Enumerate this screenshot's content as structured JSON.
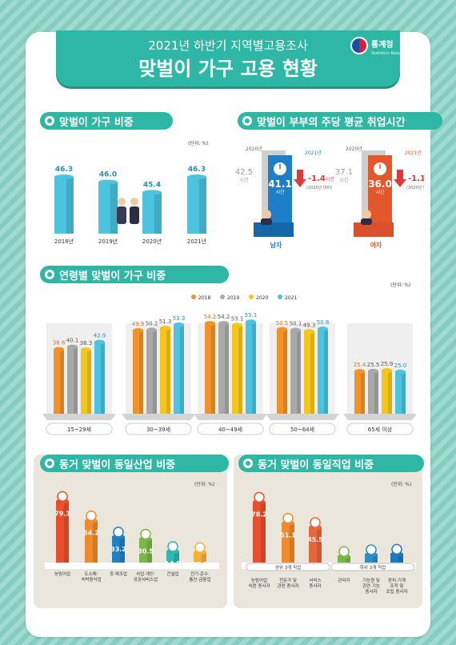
{
  "header": {
    "subtitle": "2021년 하반기 지역별고용조사",
    "title": "맞벌이 가구 고용 현황",
    "logo_name": "통계청",
    "logo_sub": "Statistics Korea"
  },
  "sections": {
    "s1": {
      "title": "맞벌이 가구 비중",
      "unit": "(단위: %)"
    },
    "s2": {
      "title": "맞벌이 부부의 주당 평균 취업시간"
    },
    "s3": {
      "title": "연령별 맞벌이 가구 비중",
      "unit": "(단위: %)"
    },
    "s4": {
      "title": "동거 맞벌이 동일산업 비중",
      "unit": "(단위: %)"
    },
    "s5": {
      "title": "동거 맞벌이 동일직업 비중",
      "unit": "(단위: %)"
    }
  },
  "hours": {
    "men": {
      "label": "남자",
      "y2020": "2020년",
      "y2021": "2021년",
      "v2020": "42.5",
      "v2021": "41.1",
      "unit": "시간",
      "change": "-1.4",
      "change_unit": "시간",
      "cmp": "(2020년 대비)"
    },
    "women": {
      "label": "여자",
      "y2020": "2020년",
      "y2021": "2021년",
      "v2020": "37.1",
      "v2021": "36.0",
      "unit": "시간",
      "change": "-1.1",
      "change_unit": "시간",
      "cmp": "(2020년 대비)"
    }
  },
  "colors": {
    "teal": "#2eb7a5",
    "sky": "#4cc3df",
    "orange": "#f2932a",
    "gray": "#a9a9a9",
    "yellow": "#f6c51c",
    "red": "#e1383a",
    "blue": "#1d7fc7",
    "green": "#7ab648"
  },
  "chart_data": [
    {
      "type": "bar",
      "title": "맞벌이 가구 비중",
      "categories": [
        "2018년",
        "2019년",
        "2020년",
        "2021년"
      ],
      "values": [
        46.3,
        46.0,
        45.4,
        46.3
      ],
      "value_labels": [
        "46.3",
        "46.0",
        "45.4",
        "46.3"
      ],
      "ylim": [
        43,
        47
      ]
    },
    {
      "type": "bar",
      "title": "연령별 맞벌이 가구 비중",
      "categories": [
        "15~29세",
        "30~39세",
        "40~49세",
        "50~64세",
        "65세 이상"
      ],
      "legend": [
        "2018",
        "2019",
        "2020",
        "2021"
      ],
      "series": [
        {
          "name": "2018",
          "values": [
            38.6,
            49.9,
            54.2,
            50.5,
            25.4
          ],
          "labels": [
            "38.6",
            "49.9",
            "54.2",
            "50.5",
            "25.4"
          ]
        },
        {
          "name": "2019",
          "values": [
            40.1,
            50.2,
            54.2,
            50.1,
            25.5
          ],
          "labels": [
            "40.1",
            "50.2",
            "54.2",
            "50.1",
            "25.5"
          ]
        },
        {
          "name": "2020",
          "values": [
            38.3,
            51.3,
            53.1,
            49.3,
            25.9
          ],
          "labels": [
            "38.3",
            "51.3",
            "53.1",
            "49.3",
            "25.9"
          ]
        },
        {
          "name": "2021",
          "values": [
            42.9,
            53.3,
            55.1,
            50.8,
            25.0
          ],
          "labels": [
            "42.9",
            "53.3",
            "55.1",
            "50.8",
            "25.0"
          ]
        }
      ],
      "ylim": [
        0,
        60
      ]
    },
    {
      "type": "bar",
      "title": "동거 맞벌이 동일산업 비중",
      "categories": [
        "농림어업",
        "도소매·\n숙박음식업",
        "광·제조업",
        "사업·개인·\n공공서비스업",
        "건설업",
        "전기·운수·\n통신·금융업"
      ],
      "values": [
        79.3,
        54.2,
        33.2,
        30.5,
        14.5,
        13.2
      ],
      "value_labels": [
        "79.3",
        "54.2",
        "33.2",
        "30.5",
        "14.5",
        "13.2"
      ],
      "ylim": [
        0,
        90
      ]
    },
    {
      "type": "bar",
      "title": "동거 맞벌이 동일직업 비중",
      "categories": [
        "농림어업\n숙련 종사자",
        "전문가 및\n관련 종사자",
        "서비스\n종사자",
        "관리자",
        "기능원 및\n관련 기능\n종사자",
        "장치·기계\n조작 및\n조립 종사자"
      ],
      "values": [
        78.2,
        51.1,
        45.5,
        8.0,
        10.4,
        11.0
      ],
      "value_labels": [
        "78.2",
        "51.1",
        "45.5",
        "8.0",
        "10.4",
        "11.0"
      ],
      "groups": [
        "상위 3개 직업",
        "하위 3개 직업"
      ],
      "ylim": [
        0,
        90
      ]
    }
  ]
}
